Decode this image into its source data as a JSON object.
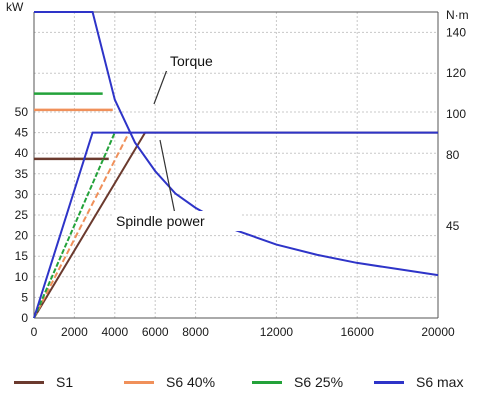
{
  "chart_data": {
    "type": "line",
    "units": {
      "left": "kW",
      "right": "N·m"
    },
    "x_axis": {
      "ticks": [
        0,
        2000,
        4000,
        6000,
        8000,
        12000,
        16000,
        20000
      ],
      "tick_labels": [
        "0",
        "2000",
        "4000",
        "6000",
        "8000",
        "12000",
        "16000",
        "20000"
      ],
      "range": [
        0,
        20000
      ]
    },
    "y_left": {
      "ticks": [
        0,
        5,
        10,
        15,
        20,
        25,
        30,
        35,
        40,
        45,
        50
      ],
      "tick_labels": [
        "0",
        "5",
        "10",
        "15",
        "20",
        "25",
        "30",
        "35",
        "40",
        "45",
        "50"
      ],
      "range": [
        0,
        50
      ]
    },
    "y_right": {
      "ticks": [
        45,
        80,
        100,
        120,
        140
      ],
      "tick_labels": [
        "45",
        "80",
        "100",
        "120",
        "140"
      ],
      "range": [
        0,
        150
      ]
    },
    "annotations": [
      {
        "text": "Torque",
        "points_to": "torque curves"
      },
      {
        "text": "Spindle power",
        "points_to": "power curves"
      }
    ],
    "grid": true,
    "legend_position": "bottom",
    "series": [
      {
        "name": "S1",
        "color": "#6b3a2e",
        "power_kW": {
          "x": [
            0,
            5500,
            20000
          ],
          "y": [
            0,
            45,
            45
          ]
        },
        "torque_Nm": {
          "x": [
            0,
            3700
          ],
          "y": [
            78,
            78
          ]
        }
      },
      {
        "name": "S6 40%",
        "color": "#f0905a",
        "power_kW": {
          "x": [
            0,
            4700
          ],
          "y": [
            0,
            45
          ]
        },
        "torque_Nm": {
          "x": [
            0,
            3900
          ],
          "y": [
            102,
            102
          ]
        }
      },
      {
        "name": "S6 25%",
        "color": "#23a23a",
        "power_kW": {
          "x": [
            0,
            4000
          ],
          "y": [
            0,
            45
          ]
        },
        "torque_Nm": {
          "x": [
            0,
            3400
          ],
          "y": [
            110,
            110
          ]
        }
      },
      {
        "name": "S6 max",
        "color": "#2e34c8",
        "power_kW": {
          "x": [
            0,
            2900,
            20000
          ],
          "y": [
            0,
            45,
            45
          ]
        },
        "torque_Nm": {
          "x": [
            0,
            2900,
            4000,
            5000,
            6000,
            7000,
            8000,
            10000,
            12000,
            14000,
            16000,
            18000,
            20000
          ],
          "y": [
            150,
            150,
            107,
            86,
            72,
            61,
            54,
            43,
            36,
            31,
            27,
            24,
            21
          ]
        }
      }
    ]
  }
}
